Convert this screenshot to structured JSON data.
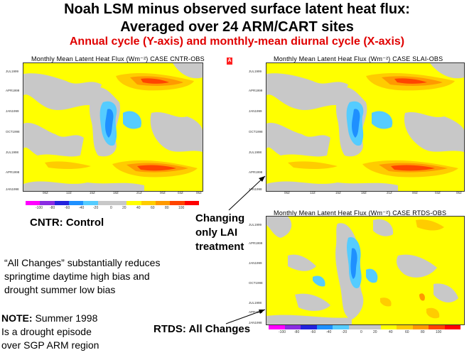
{
  "title_line1": "Noah LSM minus observed surface latent heat flux:",
  "title_line2": "Averaged over 24 ARM/CART sites",
  "subtitle": "Annual cycle (Y-axis) and monthly-mean diurnal cycle (X-axis)",
  "marker_text": "A",
  "panels": [
    {
      "title": "Monthly Mean Latent Heat Flux (Wm⁻²) CASE CNTR-OBS",
      "y_ticks": [
        "JUL1999",
        "APR1999",
        "JAN1999",
        "OCT1998",
        "JUL1998",
        "APR1998",
        "JAN1998"
      ],
      "x_ticks": [
        "06Z",
        "12Z",
        "15Z",
        "18Z",
        "21Z",
        "00Z",
        "03Z",
        "06Z"
      ]
    },
    {
      "title": "Monthly Mean Latent Heat Flux (Wm⁻²) CASE SLAI-OBS",
      "y_ticks": [
        "JUL1999",
        "APR1999",
        "JAN1999",
        "OCT1998",
        "JUL1998",
        "APR1998",
        "JAN1998"
      ],
      "x_ticks": [
        "06Z",
        "12Z",
        "15Z",
        "18Z",
        "21Z",
        "00Z",
        "03Z",
        "06Z"
      ]
    },
    {
      "title": "Monthly Mean Latent Heat Flux (Wm⁻²) CASE RTDS-OBS",
      "y_ticks": [
        "JUL1999",
        "APR1999",
        "JAN1999",
        "OCT1998",
        "JUL1998",
        "APR1998",
        "JAN1998"
      ],
      "x_ticks": [
        "06Z",
        "12Z",
        "15Z",
        "18Z",
        "21Z",
        "00Z",
        "03Z",
        "06Z"
      ]
    }
  ],
  "colorbar": {
    "labels": [
      "-100",
      "-80",
      "-60",
      "-40",
      "-20",
      "0",
      "20",
      "40",
      "60",
      "80",
      "100"
    ],
    "colors": [
      "#ff00ff",
      "#8a2be2",
      "#2222dd",
      "#1e90ff",
      "#55ccff",
      "#c8c8c8",
      "#c8c8c8",
      "#ffff00",
      "#ffcc00",
      "#ff9900",
      "#ff4400",
      "#ff0000"
    ]
  },
  "labels": {
    "cntr": "CNTR: Control",
    "lai_line1": "Changing",
    "lai_line2": "only LAI",
    "lai_line3": "treatment",
    "rtds": "RTDS: All Changes",
    "note_line1": "“All  Changes” substantially reduces",
    "note_line2": "springtime daytime high bias and",
    "note_line3": "drought summer low bias",
    "drought_bold": "NOTE:",
    "drought_rest": " Summer 1998",
    "drought_line2": "Is a drought episode",
    "drought_line3": "over SGP ARM region"
  }
}
